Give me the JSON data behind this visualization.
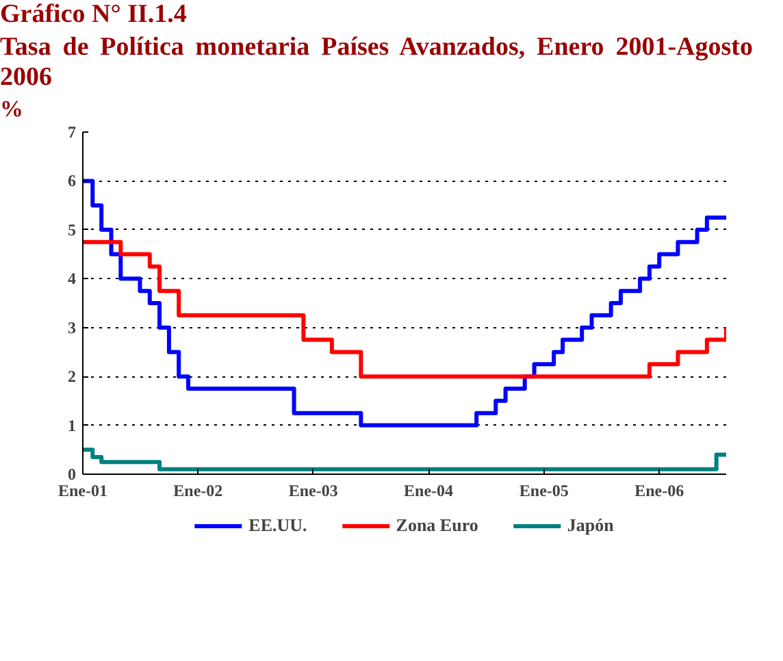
{
  "chart_data": {
    "type": "step",
    "title": "Gráfico N° II.1.4",
    "subtitle": "Tasa de Política monetaria Países Avanzados, Enero 2001-Agosto 2006",
    "ylabel": "%",
    "xlim": [
      "2001-01",
      "2006-08"
    ],
    "xticks": [
      {
        "value": "2001-01",
        "label": "Ene-01"
      },
      {
        "value": "2002-01",
        "label": "Ene-02"
      },
      {
        "value": "2003-01",
        "label": "Ene-03"
      },
      {
        "value": "2004-01",
        "label": "Ene-04"
      },
      {
        "value": "2005-01",
        "label": "Ene-05"
      },
      {
        "value": "2006-01",
        "label": "Ene-06"
      }
    ],
    "ylim": [
      0,
      7
    ],
    "yticks": [
      0,
      1,
      2,
      3,
      4,
      5,
      6,
      7
    ],
    "grid": "y",
    "legend": "bottom",
    "line_style": "solid",
    "marker": "none",
    "series": [
      {
        "name": "EE.UU.",
        "color": "#0000ff",
        "x": [
          "2001-01",
          "2001-02",
          "2001-03",
          "2001-04",
          "2001-05",
          "2001-07",
          "2001-08",
          "2001-09",
          "2001-10",
          "2001-11",
          "2001-12",
          "2002-11",
          "2003-06",
          "2004-06",
          "2004-08",
          "2004-09",
          "2004-11",
          "2004-12",
          "2005-02",
          "2005-03",
          "2005-05",
          "2005-06",
          "2005-08",
          "2005-09",
          "2005-11",
          "2005-12",
          "2006-01",
          "2006-03",
          "2006-05",
          "2006-06",
          "2006-08"
        ],
        "values": [
          6.0,
          5.5,
          5.0,
          4.5,
          4.0,
          3.75,
          3.5,
          3.0,
          2.5,
          2.0,
          1.75,
          1.25,
          1.0,
          1.25,
          1.5,
          1.75,
          2.0,
          2.25,
          2.5,
          2.75,
          3.0,
          3.25,
          3.5,
          3.75,
          4.0,
          4.25,
          4.5,
          4.75,
          5.0,
          5.25,
          5.25
        ]
      },
      {
        "name": "Zona Euro",
        "color": "#ff0000",
        "x": [
          "2001-01",
          "2001-05",
          "2001-08",
          "2001-09",
          "2001-11",
          "2002-12",
          "2003-03",
          "2003-06",
          "2005-12",
          "2006-03",
          "2006-06",
          "2006-08"
        ],
        "values": [
          4.75,
          4.5,
          4.25,
          3.75,
          3.25,
          2.75,
          2.5,
          2.0,
          2.25,
          2.5,
          2.75,
          3.0
        ]
      },
      {
        "name": "Japón",
        "color": "#008080",
        "x": [
          "2001-01",
          "2001-02",
          "2001-03",
          "2001-09",
          "2006-07",
          "2006-08"
        ],
        "values": [
          0.5,
          0.35,
          0.25,
          0.1,
          0.4,
          0.4
        ]
      }
    ]
  }
}
